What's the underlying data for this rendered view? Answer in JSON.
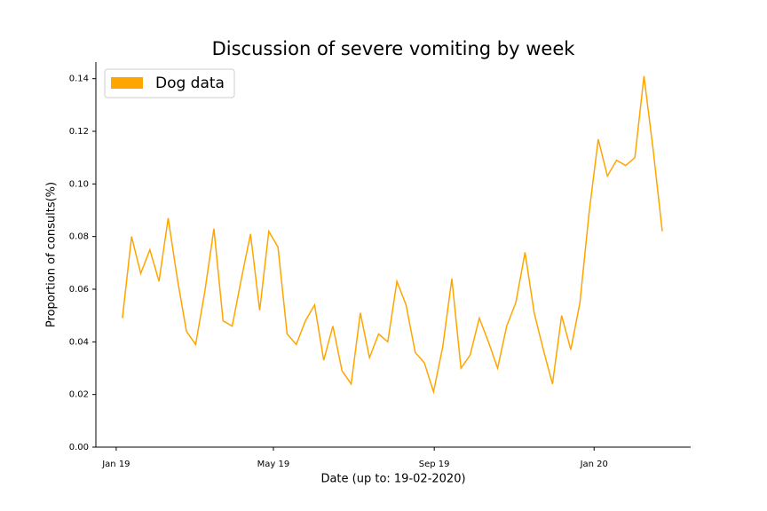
{
  "chart_data": {
    "type": "line",
    "title": "Discussion of severe vomiting by week",
    "xlabel": "Date (up to: 19-02-2020)",
    "ylabel": "Proportion of consults(%)",
    "x": [
      0,
      1,
      2,
      3,
      4,
      5,
      6,
      7,
      8,
      9,
      10,
      11,
      12,
      13,
      14,
      15,
      16,
      17,
      18,
      19,
      20,
      21,
      22,
      23,
      24,
      25,
      26,
      27,
      28,
      29,
      30,
      31,
      32,
      33,
      34,
      35,
      36,
      37,
      38,
      39,
      40,
      41,
      42,
      43,
      44,
      45,
      46,
      47,
      48,
      49,
      50,
      51,
      52,
      53,
      54,
      55,
      56,
      57,
      58,
      59
    ],
    "series": [
      {
        "name": "Dog data",
        "color": "#ffa500",
        "values": [
          0.049,
          0.08,
          0.066,
          0.075,
          0.063,
          0.087,
          0.064,
          0.044,
          0.039,
          0.059,
          0.083,
          0.048,
          0.046,
          0.064,
          0.081,
          0.052,
          0.082,
          0.076,
          0.043,
          0.039,
          0.048,
          0.054,
          0.033,
          0.046,
          0.029,
          0.024,
          0.051,
          0.034,
          0.043,
          0.04,
          0.063,
          0.054,
          0.036,
          0.032,
          0.021,
          0.038,
          0.064,
          0.03,
          0.035,
          0.049,
          0.04,
          0.03,
          0.046,
          0.055,
          0.074,
          0.051,
          0.037,
          0.024,
          0.05,
          0.037,
          0.055,
          0.089,
          0.117,
          0.103,
          0.109,
          0.107,
          0.11,
          0.141,
          0.113,
          0.082
        ]
      }
    ],
    "xlim": [
      -2.9,
      62.1
    ],
    "xticks": [
      {
        "value": -0.68,
        "label": "Jan 19"
      },
      {
        "value": 16.5,
        "label": "May 19"
      },
      {
        "value": 34.08,
        "label": "Sep 19"
      },
      {
        "value": 51.55,
        "label": "Jan 20"
      }
    ],
    "ylim": [
      0,
      0.1463
    ],
    "yticks": [
      {
        "value": 0,
        "label": "0.00"
      },
      {
        "value": 0.02,
        "label": "0.02"
      },
      {
        "value": 0.04,
        "label": "0.04"
      },
      {
        "value": 0.06,
        "label": "0.06"
      },
      {
        "value": 0.08,
        "label": "0.08"
      },
      {
        "value": 0.1,
        "label": "0.10"
      },
      {
        "value": 0.12,
        "label": "0.12"
      },
      {
        "value": 0.14,
        "label": "0.14"
      }
    ],
    "legend": "upper left"
  }
}
